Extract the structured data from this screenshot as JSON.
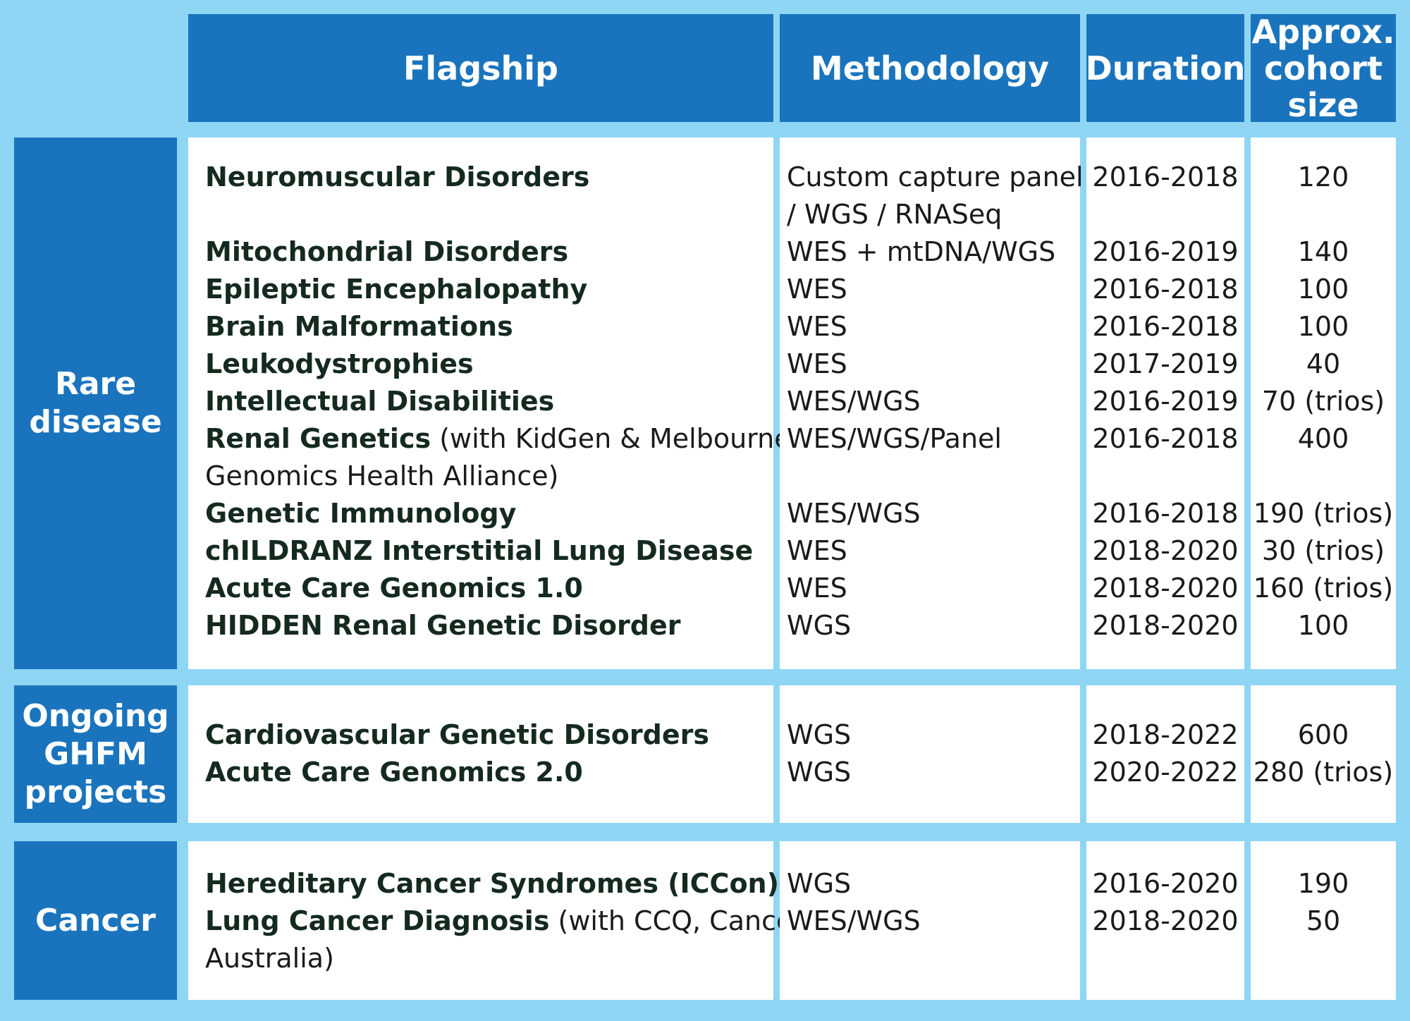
{
  "headers": {
    "flagship": "Flagship",
    "methodology": "Methodology",
    "duration": "Duration",
    "cohort_line1": "Approx.",
    "cohort_line2": "cohort",
    "cohort_line3": "size"
  },
  "groups": {
    "rare": {
      "label_line1": "Rare",
      "label_line2": "disease",
      "rows": [
        {
          "name": "Neuromuscular Disorders",
          "method_line1": "Custom capture panel",
          "method_line2": "/ WGS / RNASeq",
          "duration": "2016-2018",
          "cohort": "120"
        },
        {
          "name": "Mitochondrial Disorders",
          "method": "WES + mtDNA/WGS",
          "duration": "2016-2019",
          "cohort": "140"
        },
        {
          "name": "Epileptic Encephalopathy",
          "method": "WES",
          "duration": "2016-2018",
          "cohort": "100"
        },
        {
          "name": "Brain Malformations",
          "method": "WES",
          "duration": "2016-2018",
          "cohort": "100"
        },
        {
          "name": "Leukodystrophies",
          "method": "WES",
          "duration": "2017-2019",
          "cohort": "40"
        },
        {
          "name": "Intellectual Disabilities",
          "method": "WES/WGS",
          "duration": "2016-2019",
          "cohort": "70 (trios)"
        },
        {
          "name": "Renal Genetics",
          "note_line1": " (with KidGen & Melbourne",
          "note_line2": "Genomics Health Alliance)",
          "method": "WES/WGS/Panel",
          "duration": "2016-2018",
          "cohort": "400"
        },
        {
          "name": "Genetic Immunology",
          "method": "WES/WGS",
          "duration": "2016-2018",
          "cohort": "190 (trios)"
        },
        {
          "name": "chILDRANZ Interstitial Lung Disease",
          "method": "WES",
          "duration": "2018-2020",
          "cohort": "30 (trios)"
        },
        {
          "name": "Acute Care Genomics 1.0",
          "method": "WES",
          "duration": "2018-2020",
          "cohort": "160 (trios)"
        },
        {
          "name": "HIDDEN Renal Genetic Disorder",
          "method": "WGS",
          "duration": "2018-2020",
          "cohort": "100"
        }
      ]
    },
    "ongoing": {
      "label_line1": "Ongoing",
      "label_line2": "GHFM",
      "label_line3": "projects",
      "rows": [
        {
          "name": "Cardiovascular Genetic Disorders",
          "method": "WGS",
          "duration": "2018-2022",
          "cohort": "600"
        },
        {
          "name": "Acute Care Genomics 2.0",
          "method": "WGS",
          "duration": "2020-2022",
          "cohort": "280 (trios)"
        }
      ]
    },
    "cancer": {
      "label": "Cancer",
      "rows": [
        {
          "name": "Hereditary Cancer Syndromes (ICCon)",
          "method": "WGS",
          "duration": "2016-2020",
          "cohort": "190"
        },
        {
          "name": "Lung Cancer Diagnosis",
          "note_line1": " (with CCQ, Cancer",
          "note_line2": "Australia)",
          "method": "WES/WGS",
          "duration": "2018-2020",
          "cohort": "50"
        }
      ]
    }
  },
  "colors": {
    "background": "#8fd6f5",
    "header": "#1a74bd",
    "panel": "#ffffff"
  }
}
